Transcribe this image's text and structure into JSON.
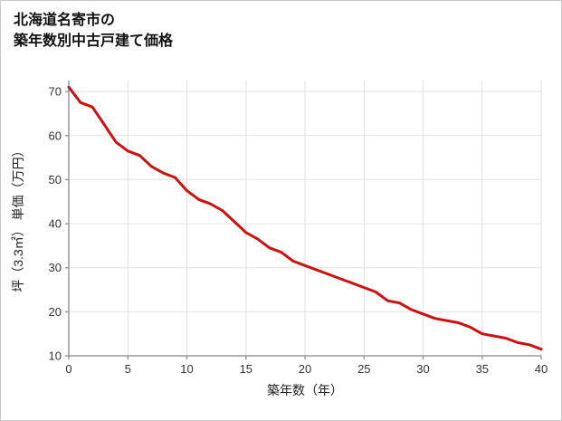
{
  "title": {
    "line1": "北海道名寄市の",
    "line2": "築年数別中古戸建て価格"
  },
  "chart_data": {
    "type": "line",
    "title": "北海道名寄市の築年数別中古戸建て価格",
    "xlabel": "築年数（年）",
    "ylabel": "坪（3.3㎡） 単価（万円）",
    "x": [
      0,
      1,
      2,
      3,
      4,
      5,
      6,
      7,
      8,
      9,
      10,
      11,
      12,
      13,
      14,
      15,
      16,
      17,
      18,
      19,
      20,
      21,
      22,
      23,
      24,
      25,
      26,
      27,
      28,
      29,
      30,
      31,
      32,
      33,
      34,
      35,
      36,
      37,
      38,
      39,
      40
    ],
    "values": [
      71,
      67.5,
      66.5,
      62.5,
      58.5,
      56.5,
      55.5,
      53,
      51.5,
      50.5,
      47.5,
      45.5,
      44.5,
      43,
      40.5,
      38,
      36.5,
      34.5,
      33.5,
      31.5,
      30.5,
      29.5,
      28.5,
      27.5,
      26.5,
      25.5,
      24.5,
      22.5,
      22,
      20.5,
      19.5,
      18.5,
      18,
      17.5,
      16.5,
      15,
      14.5,
      14,
      13,
      12.5,
      11.5
    ],
    "xlim": [
      0,
      40
    ],
    "ylim": [
      10,
      72.5
    ],
    "xticks": [
      0,
      5,
      10,
      15,
      20,
      25,
      30,
      35,
      40
    ],
    "yticks": [
      10,
      20,
      30,
      40,
      50,
      60,
      70
    ],
    "grid": true,
    "legend": "none",
    "line_color": "#cc1111",
    "axis_color": "#9a9a9a",
    "grid_color": "#e2e2e2",
    "tick_label_color": "#333333"
  }
}
